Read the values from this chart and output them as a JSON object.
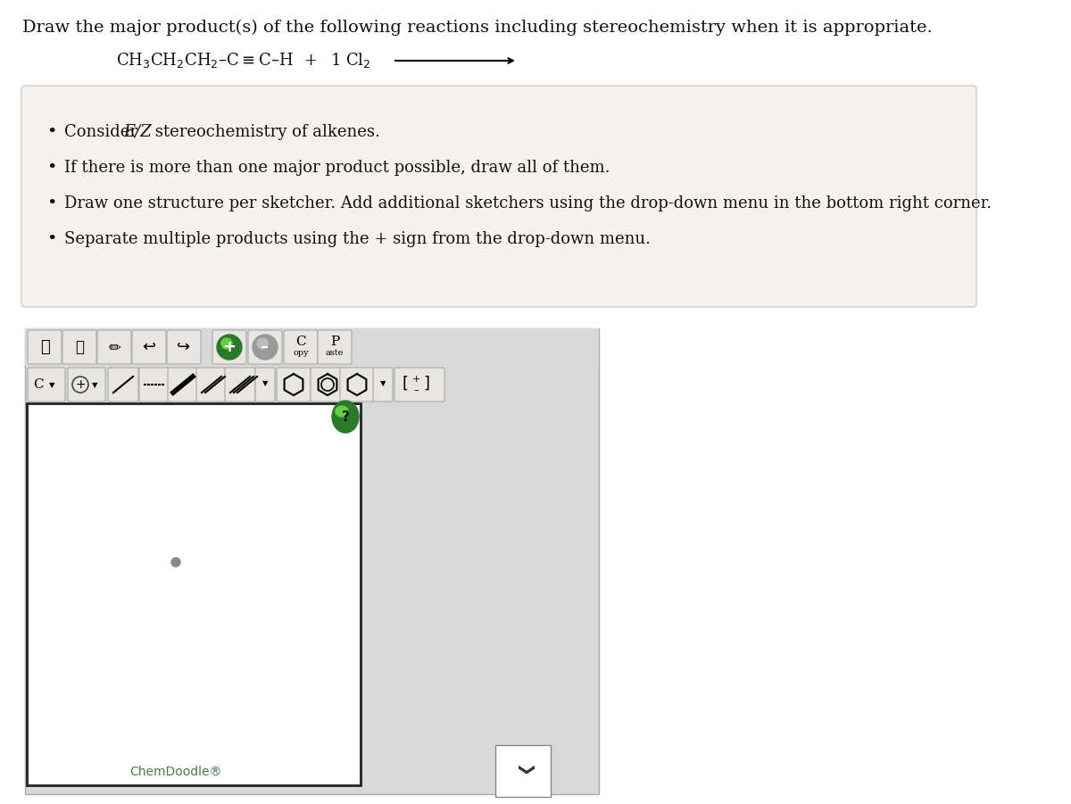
{
  "bg_color": "#ffffff",
  "page_bg": "#ffffff",
  "title_text": "Draw the major product(s) of the following reactions including stereochemistry when it is appropriate.",
  "title_fontsize": 14,
  "reaction_fontsize": 13,
  "bullet_fontsize": 13,
  "bullet_box_facecolor": "#f5f2ee",
  "bullet_box_edgecolor": "#cccccc",
  "bullets": [
    "Consider E/Z stereochemistry of alkenes.",
    "If there is more than one major product possible, draw all of them.",
    "Draw one structure per sketcher. Add additional sketchers using the drop-down menu in the bottom right corner.",
    "Separate multiple products using the + sign from the drop-down menu."
  ],
  "outer_panel_facecolor": "#d8d8d8",
  "outer_panel_edgecolor": "#aaaaaa",
  "toolbar_btn_facecolor": "#e8e6e3",
  "toolbar_btn_edgecolor": "#aaaaaa",
  "canvas_facecolor": "#ffffff",
  "canvas_edgecolor": "#222222",
  "chemdoodle_color": "#4a7c4e",
  "dropdown_facecolor": "#ffffff",
  "dropdown_edgecolor": "#888888",
  "green_circle_dark": "#2a7a2a",
  "green_circle_light": "#66cc44"
}
